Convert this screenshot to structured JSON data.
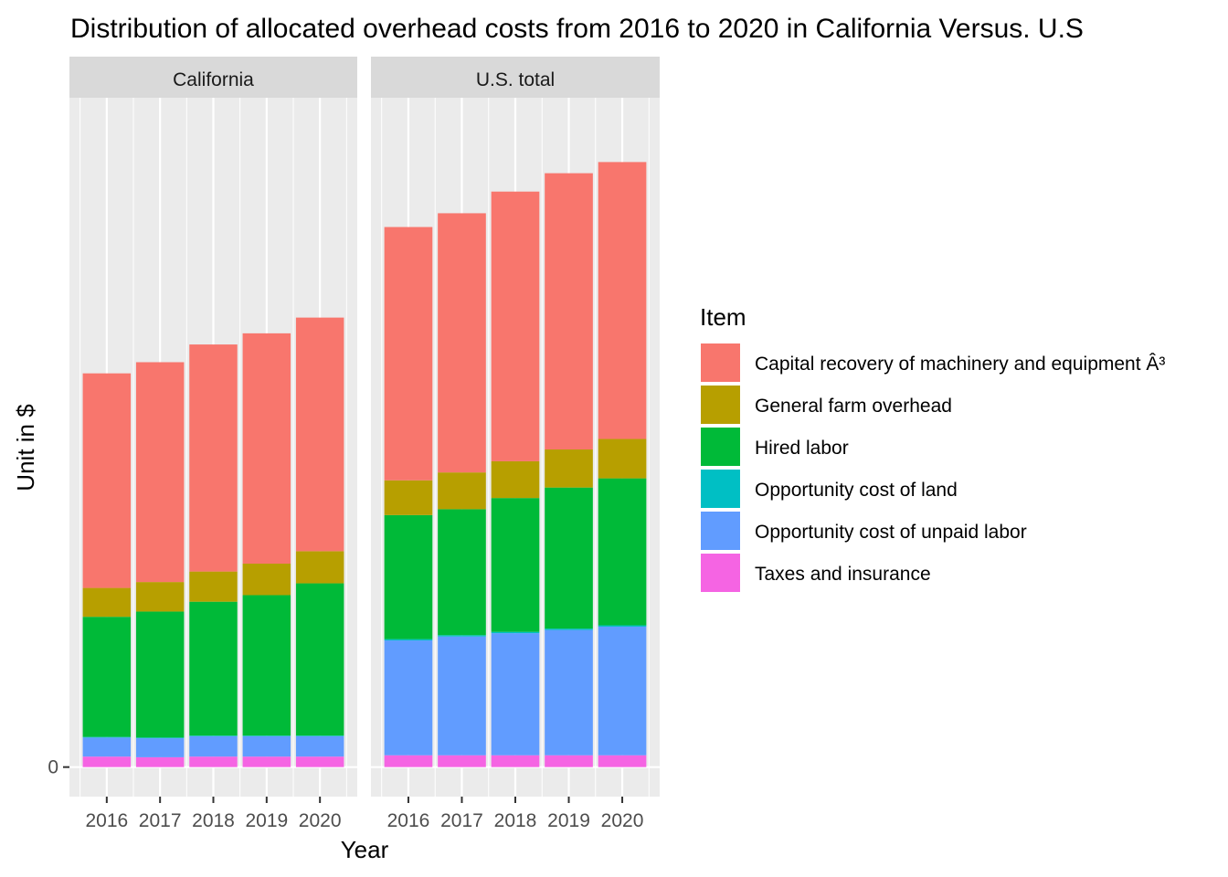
{
  "chart_data": {
    "type": "bar",
    "stacked": true,
    "title": "Distribution of allocated overhead costs from 2016 to 2020 in California Versus. U.S",
    "xlabel": "Year",
    "ylabel": "Unit in $",
    "y_ticks": [
      "0"
    ],
    "ylim": [
      -4.5,
      102
    ],
    "grid": true,
    "legend_title": "Item",
    "legend_position": "right",
    "categories": [
      "2016",
      "2017",
      "2018",
      "2019",
      "2020"
    ],
    "stack_order": [
      "Taxes and insurance",
      "Opportunity cost of unpaid labor",
      "Opportunity cost of land",
      "Hired labor",
      "General farm overhead",
      "Capital recovery of machinery and equipment Â³"
    ],
    "legend_items": [
      {
        "name": "Capital recovery of machinery and equipment Â³",
        "color": "#F8766D"
      },
      {
        "name": "General farm overhead",
        "color": "#B79F00"
      },
      {
        "name": "Hired labor",
        "color": "#00BA38"
      },
      {
        "name": "Opportunity cost of land",
        "color": "#00BFC4"
      },
      {
        "name": "Opportunity cost of unpaid labor",
        "color": "#619CFF"
      },
      {
        "name": "Taxes and insurance",
        "color": "#F564E3"
      }
    ],
    "panels": [
      {
        "label": "California",
        "series": [
          {
            "name": "Taxes and insurance",
            "values": [
              1.6,
              1.5,
              1.6,
              1.6,
              1.6
            ]
          },
          {
            "name": "Opportunity cost of unpaid labor",
            "values": [
              2.9,
              2.9,
              3.1,
              3.1,
              3.1
            ]
          },
          {
            "name": "Opportunity cost of land",
            "values": [
              0.1,
              0.1,
              0.1,
              0.1,
              0.1
            ]
          },
          {
            "name": "Hired labor",
            "values": [
              18.3,
              19.2,
              20.4,
              21.4,
              23.2
            ]
          },
          {
            "name": "General farm overhead",
            "values": [
              4.4,
              4.5,
              4.6,
              4.8,
              4.9
            ]
          },
          {
            "name": "Capital recovery of machinery and equipment Â³",
            "values": [
              32.7,
              33.5,
              34.6,
              35.1,
              35.6
            ]
          }
        ]
      },
      {
        "label": "U.S. total",
        "series": [
          {
            "name": "Taxes and insurance",
            "values": [
              1.8,
              1.8,
              1.8,
              1.8,
              1.8
            ]
          },
          {
            "name": "Opportunity cost of unpaid labor",
            "values": [
              17.5,
              18.1,
              18.6,
              19.1,
              19.6
            ]
          },
          {
            "name": "Opportunity cost of land",
            "values": [
              0.2,
              0.2,
              0.2,
              0.2,
              0.2
            ]
          },
          {
            "name": "Hired labor",
            "values": [
              18.9,
              19.2,
              20.4,
              21.5,
              22.4
            ]
          },
          {
            "name": "General farm overhead",
            "values": [
              5.3,
              5.6,
              5.6,
              5.8,
              6.0
            ]
          },
          {
            "name": "Capital recovery of machinery and equipment Â³",
            "values": [
              38.6,
              39.5,
              41.1,
              42.1,
              42.2
            ]
          }
        ]
      }
    ]
  }
}
